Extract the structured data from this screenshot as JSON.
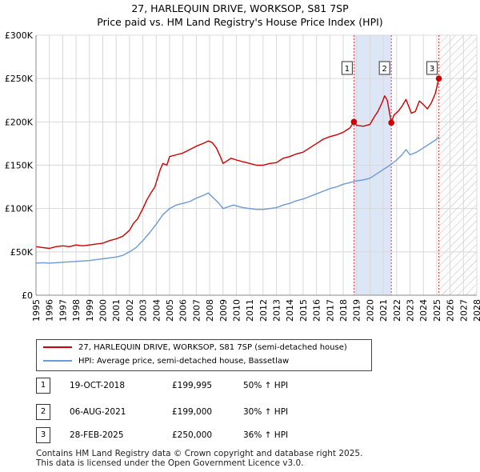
{
  "title_line1": "27, HARLEQUIN DRIVE, WORKSOP, S81 7SP",
  "title_line2": "Price paid vs. HM Land Registry's House Price Index (HPI)",
  "colors": {
    "property": "#cc0000",
    "hpi": "#6a9ad4",
    "highlight": "#dde6f7",
    "marker_line": "#d04040",
    "grid": "#d8d8d8"
  },
  "chart_data": {
    "type": "line",
    "xlim": [
      1995,
      2028
    ],
    "ylim": [
      0,
      300000
    ],
    "xticks": [
      "1995",
      "1996",
      "1997",
      "1998",
      "1999",
      "2000",
      "2001",
      "2002",
      "2003",
      "2004",
      "2005",
      "2006",
      "2007",
      "2008",
      "2009",
      "2010",
      "2011",
      "2012",
      "2013",
      "2014",
      "2015",
      "2016",
      "2017",
      "2018",
      "2019",
      "2020",
      "2021",
      "2022",
      "2023",
      "2024",
      "2025",
      "2026",
      "2027",
      "2028"
    ],
    "yticks": [
      {
        "value": 0,
        "label": "£0"
      },
      {
        "value": 50000,
        "label": "£50K"
      },
      {
        "value": 100000,
        "label": "£100K"
      },
      {
        "value": 150000,
        "label": "£150K"
      },
      {
        "value": 200000,
        "label": "£200K"
      },
      {
        "value": 250000,
        "label": "£250K"
      },
      {
        "value": 300000,
        "label": "£300K"
      }
    ],
    "highlight_span": [
      2018.8,
      2021.6
    ],
    "future_start": 2025.16,
    "series": [
      {
        "name": "27, HARLEQUIN DRIVE, WORKSOP, S81 7SP (semi-detached house)",
        "color": "#cc0000",
        "points": [
          [
            1995,
            56000
          ],
          [
            1995.5,
            55000
          ],
          [
            1996,
            54000
          ],
          [
            1996.5,
            56000
          ],
          [
            1997,
            57000
          ],
          [
            1997.5,
            56000
          ],
          [
            1998,
            58000
          ],
          [
            1998.5,
            57000
          ],
          [
            1999,
            58000
          ],
          [
            1999.5,
            59000
          ],
          [
            2000,
            60000
          ],
          [
            2000.5,
            63000
          ],
          [
            2001,
            65000
          ],
          [
            2001.5,
            68000
          ],
          [
            2002,
            75000
          ],
          [
            2002.3,
            83000
          ],
          [
            2002.6,
            88000
          ],
          [
            2003,
            100000
          ],
          [
            2003.3,
            110000
          ],
          [
            2003.6,
            118000
          ],
          [
            2003.9,
            125000
          ],
          [
            2004.1,
            135000
          ],
          [
            2004.3,
            145000
          ],
          [
            2004.5,
            152000
          ],
          [
            2004.8,
            150000
          ],
          [
            2005,
            160000
          ],
          [
            2005.5,
            162000
          ],
          [
            2006,
            164000
          ],
          [
            2006.5,
            168000
          ],
          [
            2007,
            172000
          ],
          [
            2007.5,
            175000
          ],
          [
            2007.9,
            178000
          ],
          [
            2008.2,
            176000
          ],
          [
            2008.5,
            170000
          ],
          [
            2008.8,
            160000
          ],
          [
            2009,
            152000
          ],
          [
            2009.3,
            155000
          ],
          [
            2009.6,
            158000
          ],
          [
            2010,
            156000
          ],
          [
            2010.5,
            154000
          ],
          [
            2011,
            152000
          ],
          [
            2011.5,
            150000
          ],
          [
            2012,
            150000
          ],
          [
            2012.5,
            152000
          ],
          [
            2013,
            153000
          ],
          [
            2013.5,
            158000
          ],
          [
            2014,
            160000
          ],
          [
            2014.5,
            163000
          ],
          [
            2015,
            165000
          ],
          [
            2015.5,
            170000
          ],
          [
            2016,
            175000
          ],
          [
            2016.5,
            180000
          ],
          [
            2017,
            183000
          ],
          [
            2017.5,
            185000
          ],
          [
            2018,
            188000
          ],
          [
            2018.5,
            193000
          ],
          [
            2018.8,
            199995
          ],
          [
            2019,
            196000
          ],
          [
            2019.5,
            195000
          ],
          [
            2020,
            197000
          ],
          [
            2020.3,
            205000
          ],
          [
            2020.6,
            212000
          ],
          [
            2020.9,
            222000
          ],
          [
            2021.1,
            230000
          ],
          [
            2021.3,
            225000
          ],
          [
            2021.6,
            199000
          ],
          [
            2021.8,
            208000
          ],
          [
            2022.1,
            212000
          ],
          [
            2022.4,
            218000
          ],
          [
            2022.7,
            226000
          ],
          [
            2022.9,
            218000
          ],
          [
            2023.1,
            210000
          ],
          [
            2023.4,
            212000
          ],
          [
            2023.7,
            224000
          ],
          [
            2024,
            220000
          ],
          [
            2024.3,
            215000
          ],
          [
            2024.6,
            222000
          ],
          [
            2024.9,
            233000
          ],
          [
            2025.16,
            250000
          ]
        ]
      },
      {
        "name": "HPI: Average price, semi-detached house, Bassetlaw",
        "color": "#6a9ad4",
        "points": [
          [
            1995,
            37000
          ],
          [
            1995.5,
            37500
          ],
          [
            1996,
            37000
          ],
          [
            1996.5,
            37500
          ],
          [
            1997,
            38000
          ],
          [
            1997.5,
            38500
          ],
          [
            1998,
            39000
          ],
          [
            1998.5,
            39500
          ],
          [
            1999,
            40000
          ],
          [
            1999.5,
            41000
          ],
          [
            2000,
            42000
          ],
          [
            2000.5,
            43000
          ],
          [
            2001,
            44000
          ],
          [
            2001.5,
            46000
          ],
          [
            2002,
            50000
          ],
          [
            2002.5,
            55000
          ],
          [
            2003,
            63000
          ],
          [
            2003.5,
            72000
          ],
          [
            2004,
            82000
          ],
          [
            2004.5,
            93000
          ],
          [
            2005,
            100000
          ],
          [
            2005.5,
            104000
          ],
          [
            2006,
            106000
          ],
          [
            2006.5,
            108000
          ],
          [
            2007,
            112000
          ],
          [
            2007.5,
            115000
          ],
          [
            2007.9,
            118000
          ],
          [
            2008.3,
            112000
          ],
          [
            2008.7,
            106000
          ],
          [
            2009,
            100000
          ],
          [
            2009.4,
            102000
          ],
          [
            2009.8,
            104000
          ],
          [
            2010,
            103000
          ],
          [
            2010.5,
            101000
          ],
          [
            2011,
            100000
          ],
          [
            2011.5,
            99000
          ],
          [
            2012,
            99000
          ],
          [
            2012.5,
            100000
          ],
          [
            2013,
            101000
          ],
          [
            2013.5,
            104000
          ],
          [
            2014,
            106000
          ],
          [
            2014.5,
            109000
          ],
          [
            2015,
            111000
          ],
          [
            2015.5,
            114000
          ],
          [
            2016,
            117000
          ],
          [
            2016.5,
            120000
          ],
          [
            2017,
            123000
          ],
          [
            2017.5,
            125000
          ],
          [
            2018,
            128000
          ],
          [
            2018.5,
            130000
          ],
          [
            2019,
            132000
          ],
          [
            2019.5,
            133000
          ],
          [
            2020,
            135000
          ],
          [
            2020.5,
            140000
          ],
          [
            2021,
            145000
          ],
          [
            2021.5,
            150000
          ],
          [
            2022,
            156000
          ],
          [
            2022.4,
            162000
          ],
          [
            2022.7,
            168000
          ],
          [
            2023,
            162000
          ],
          [
            2023.5,
            165000
          ],
          [
            2024,
            170000
          ],
          [
            2024.5,
            175000
          ],
          [
            2025,
            180000
          ],
          [
            2025.16,
            183000
          ]
        ]
      }
    ],
    "sales": [
      {
        "num": "1",
        "x": 2018.8,
        "y": 199995
      },
      {
        "num": "2",
        "x": 2021.6,
        "y": 199000
      },
      {
        "num": "3",
        "x": 2025.16,
        "y": 250000
      }
    ]
  },
  "legend": {
    "property_label": "27, HARLEQUIN DRIVE, WORKSOP, S81 7SP (semi-detached house)",
    "hpi_label": "HPI: Average price, semi-detached house, Bassetlaw"
  },
  "sales_table": [
    {
      "num": "1",
      "date": "19-OCT-2018",
      "price": "£199,995",
      "hpi": "50% ↑ HPI"
    },
    {
      "num": "2",
      "date": "06-AUG-2021",
      "price": "£199,000",
      "hpi": "30% ↑ HPI"
    },
    {
      "num": "3",
      "date": "28-FEB-2025",
      "price": "£250,000",
      "hpi": "36% ↑ HPI"
    }
  ],
  "footer": {
    "line1": "Contains HM Land Registry data © Crown copyright and database right 2025.",
    "line2": "This data is licensed under the Open Government Licence v3.0."
  }
}
